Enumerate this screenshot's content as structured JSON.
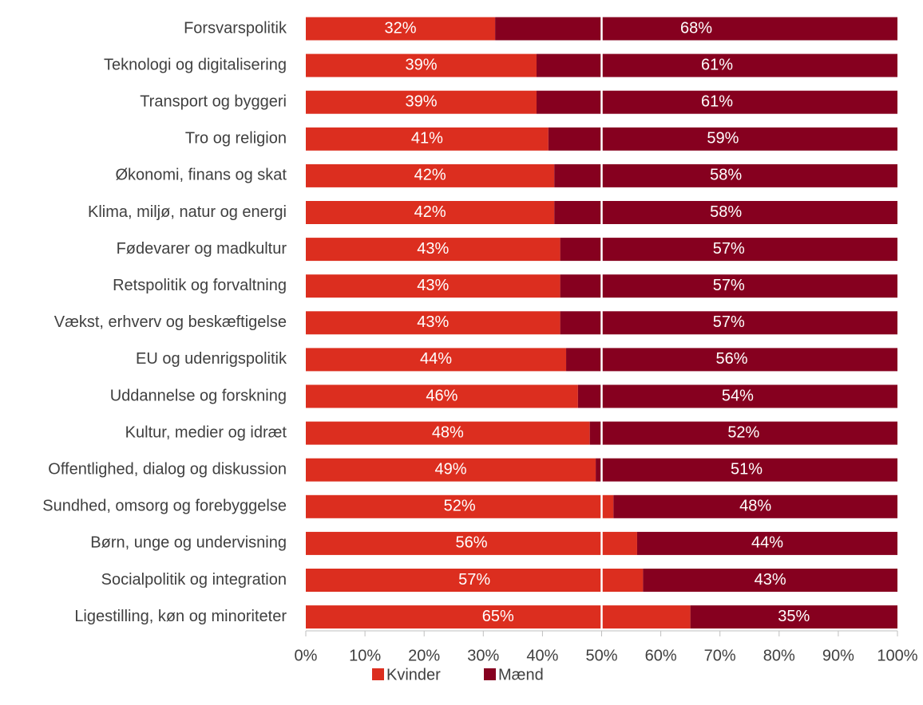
{
  "chart_data": {
    "type": "bar",
    "orientation": "horizontal",
    "stacked": true,
    "categories": [
      "Forsvarspolitik",
      "Teknologi og digitalisering",
      "Transport og byggeri",
      "Tro og religion",
      "Økonomi, finans og skat",
      "Klima, miljø, natur og energi",
      "Fødevarer og madkultur",
      "Retspolitik og forvaltning",
      "Vækst, erhverv og beskæftigelse",
      "EU og udenrigspolitik",
      "Uddannelse og forskning",
      "Kultur, medier og idræt",
      "Offentlighed, dialog og diskussion",
      "Sundhed, omsorg og forebyggelse",
      "Børn, unge og undervisning",
      "Socialpolitik og integration",
      "Ligestilling, køn og minoriteter"
    ],
    "series": [
      {
        "name": "Kvinder",
        "color": "#dc2e1f",
        "values": [
          32,
          39,
          39,
          41,
          42,
          42,
          43,
          43,
          43,
          44,
          46,
          48,
          49,
          52,
          56,
          57,
          65
        ],
        "value_labels": [
          "32%",
          "39%",
          "39%",
          "41%",
          "42%",
          "42%",
          "43%",
          "43%",
          "43%",
          "44%",
          "46%",
          "48%",
          "49%",
          "52%",
          "56%",
          "57%",
          "65%"
        ]
      },
      {
        "name": "Mænd",
        "color": "#86001f",
        "values": [
          68,
          61,
          61,
          59,
          58,
          58,
          57,
          57,
          57,
          56,
          54,
          52,
          51,
          48,
          44,
          43,
          35
        ],
        "value_labels": [
          "68%",
          "61%",
          "61%",
          "59%",
          "58%",
          "58%",
          "57%",
          "57%",
          "57%",
          "56%",
          "54%",
          "52%",
          "51%",
          "48%",
          "44%",
          "43%",
          "35%"
        ]
      }
    ],
    "xlim": [
      0,
      100
    ],
    "xticks": [
      {
        "value": 0,
        "label": "0%"
      },
      {
        "value": 10,
        "label": "10%"
      },
      {
        "value": 20,
        "label": "20%"
      },
      {
        "value": 30,
        "label": "30%"
      },
      {
        "value": 40,
        "label": "40%"
      },
      {
        "value": 50,
        "label": "50%"
      },
      {
        "value": 60,
        "label": "60%"
      },
      {
        "value": 70,
        "label": "70%"
      },
      {
        "value": 80,
        "label": "80%"
      },
      {
        "value": 90,
        "label": "90%"
      },
      {
        "value": 100,
        "label": "100%"
      }
    ],
    "reference_line": 50,
    "legend": "bottom"
  }
}
